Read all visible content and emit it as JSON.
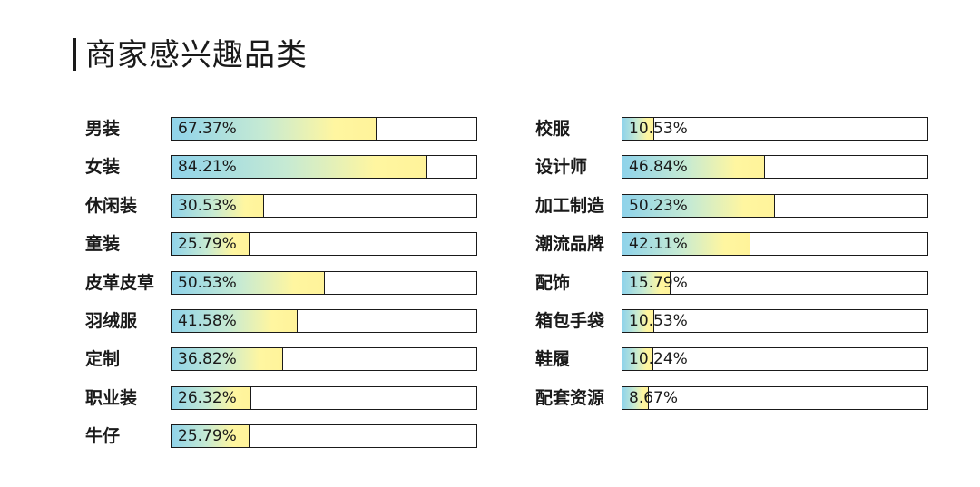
{
  "title": "商家感兴趣品类",
  "chart_data": {
    "type": "bar",
    "title": "商家感兴趣品类",
    "xlabel": "",
    "ylabel": "",
    "xlim": [
      0,
      100
    ],
    "groups": [
      {
        "categories": [
          "男装",
          "女装",
          "休闲装",
          "童装",
          "皮革皮草",
          "羽绒服",
          "定制",
          "职业装",
          "牛仔"
        ],
        "values": [
          67.37,
          84.21,
          30.53,
          25.79,
          50.53,
          41.58,
          36.82,
          26.32,
          25.79
        ],
        "labels": [
          "67.37%",
          "84.21%",
          "30.53%",
          "25.79%",
          "50.53%",
          "41.58%",
          "36.82%",
          "26.32%",
          "25.79%"
        ]
      },
      {
        "categories": [
          "校服",
          "设计师",
          "加工制造",
          "潮流品牌",
          "配饰",
          "箱包手袋",
          "鞋履",
          "配套资源"
        ],
        "values": [
          10.53,
          46.84,
          50.23,
          42.11,
          15.79,
          10.53,
          10.24,
          8.67
        ],
        "labels": [
          "10.53%",
          "46.84%",
          "50.23%",
          "42.11%",
          "15.79%",
          "10.53%",
          "10.24%",
          "8.67%"
        ]
      }
    ],
    "colors": {
      "gradient_start": "#8fd3ea",
      "gradient_end": "#fff39a",
      "outline": "#1a1a1a"
    }
  }
}
